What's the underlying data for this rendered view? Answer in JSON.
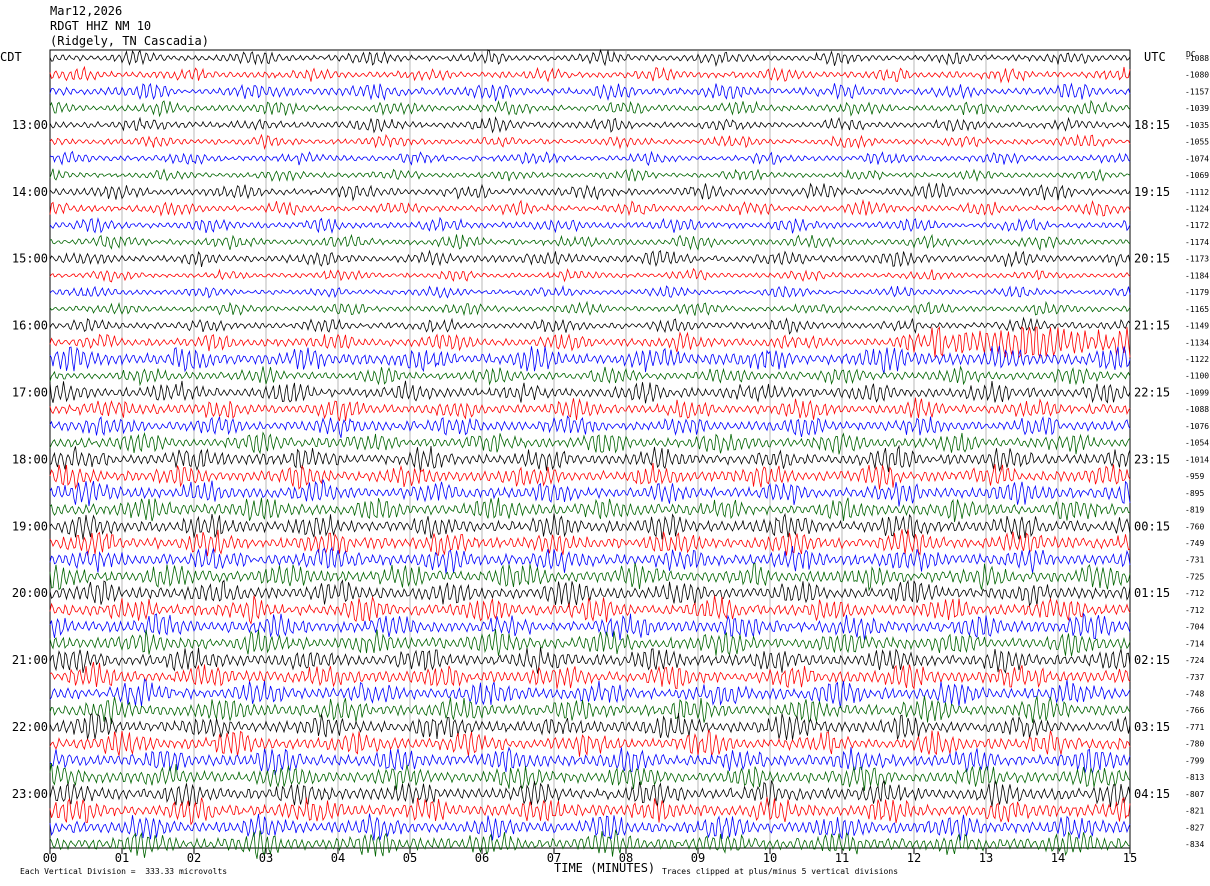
{
  "header": {
    "date": "Mar12,2026",
    "station": "RDGT HHZ NM 10",
    "location": "(Ridgely, TN Cascadia)"
  },
  "left_label": "CDT",
  "right_label": "UTC",
  "dc_label": "DC",
  "footer": {
    "left": "Each Vertical Division =  333.33 microvolts",
    "center": "TIME (MINUTES)",
    "right": "Traces clipped at plus/minus 5 vertical divisions"
  },
  "colors": {
    "trace_cycle": [
      "#000000",
      "#ff0000",
      "#0000ff",
      "#006400"
    ],
    "grid": "#888888"
  },
  "chart_data": {
    "type": "line",
    "title": "",
    "xlabel": "TIME (MINUTES)",
    "ylabel": "",
    "x_ticks": [
      "00",
      "01",
      "02",
      "03",
      "04",
      "05",
      "06",
      "07",
      "08",
      "09",
      "10",
      "11",
      "12",
      "13",
      "14",
      "15"
    ],
    "xlim": [
      0,
      15
    ],
    "trace_count": 48,
    "trace_minutes": 15,
    "left_hour_labels": [
      "13:00",
      "14:00",
      "15:00",
      "16:00",
      "17:00",
      "18:00",
      "19:00",
      "20:00",
      "21:00",
      "22:00",
      "23:00"
    ],
    "right_hour_labels": [
      "18:15",
      "19:15",
      "20:15",
      "21:15",
      "22:15",
      "23:15",
      "00:15",
      "01:15",
      "02:15",
      "03:15",
      "04:15"
    ],
    "hour_label_first_trace": 4,
    "dc_offsets": [
      "-1088",
      "-1080",
      "-1157",
      "-1039",
      "-1035",
      "-1055",
      "-1074",
      "-1069",
      "-1112",
      "-1124",
      "-1172",
      "-1174",
      "-1173",
      "-1184",
      "-1179",
      "-1165",
      "-1149",
      "-1134",
      "-1122",
      "-1100",
      "-1099",
      "-1088",
      "-1076",
      "-1054",
      "-1014",
      "-959",
      "-895",
      "-819",
      "-760",
      "-749",
      "-731",
      "-725",
      "-712",
      "-712",
      "-704",
      "-714",
      "-724",
      "-737",
      "-748",
      "-766",
      "-771",
      "-780",
      "-799",
      "-813",
      "-807",
      "-821",
      "-827",
      "-834"
    ],
    "trace_activity": [
      1.0,
      1.0,
      1.2,
      1.0,
      1.0,
      0.9,
      0.9,
      0.8,
      1.1,
      1.0,
      1.0,
      1.0,
      1.1,
      0.8,
      0.8,
      0.9,
      1.0,
      1.3,
      1.3,
      1.2,
      1.5,
      1.5,
      1.5,
      1.5,
      1.7,
      1.7,
      1.7,
      1.7,
      1.8,
      1.8,
      1.8,
      1.8,
      1.8,
      1.8,
      1.8,
      1.8,
      1.8,
      1.8,
      1.8,
      1.8,
      1.8,
      1.8,
      1.8,
      1.8,
      1.8,
      1.8,
      1.8,
      1.8
    ]
  }
}
